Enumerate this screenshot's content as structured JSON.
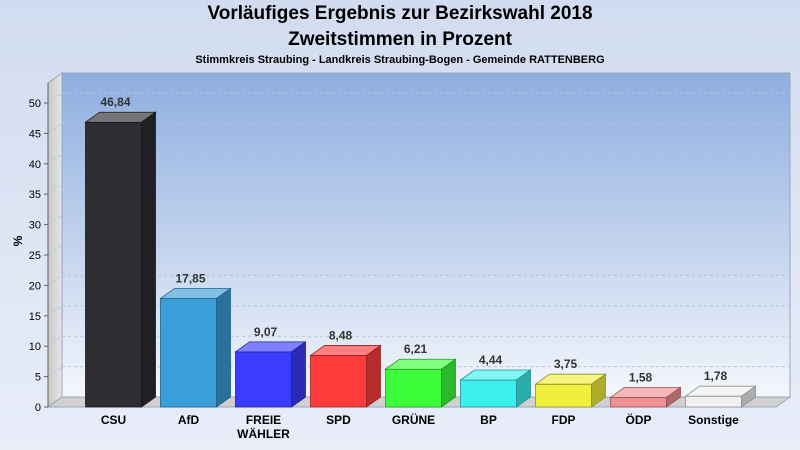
{
  "header": {
    "title_line1": "Vorläufiges Ergebnis zur Bezirkswahl 2018",
    "title_line2": "Zweitstimmen in Prozent",
    "subtitle": "Stimmkreis Straubing - Landkreis Straubing-Bogen - Gemeinde RATTENBERG"
  },
  "chart_data": {
    "type": "bar",
    "title": "Vorläufiges Ergebnis zur Bezirkswahl 2018 Zweitstimmen in Prozent",
    "ylabel": "%",
    "ylim": [
      0,
      50
    ],
    "yticks": [
      0,
      5,
      10,
      15,
      20,
      25,
      30,
      35,
      40,
      45,
      50
    ],
    "grid": true,
    "categories": [
      "CSU",
      "AfD",
      "FREIE WÄHLER",
      "SPD",
      "GRÜNE",
      "BP",
      "FDP",
      "ÖDP",
      "Sonstige"
    ],
    "category_lines": [
      [
        "CSU"
      ],
      [
        "AfD"
      ],
      [
        "FREIE",
        "WÄHLER"
      ],
      [
        "SPD"
      ],
      [
        "GRÜNE"
      ],
      [
        "BP"
      ],
      [
        "FDP"
      ],
      [
        "ÖDP"
      ],
      [
        "Sonstige"
      ]
    ],
    "values": [
      46.84,
      17.85,
      9.07,
      8.48,
      6.21,
      4.44,
      3.75,
      1.58,
      1.78
    ],
    "value_labels": [
      "46,84",
      "17,85",
      "9,07",
      "8,48",
      "6,21",
      "4,44",
      "3,75",
      "1,58",
      "1,78"
    ],
    "colors": [
      "#2d2d32",
      "#3a9fd8",
      "#3c3cff",
      "#ff3c3c",
      "#3cff3c",
      "#3cf0f0",
      "#f0f03c",
      "#f09090",
      "#f0f0f0"
    ]
  }
}
